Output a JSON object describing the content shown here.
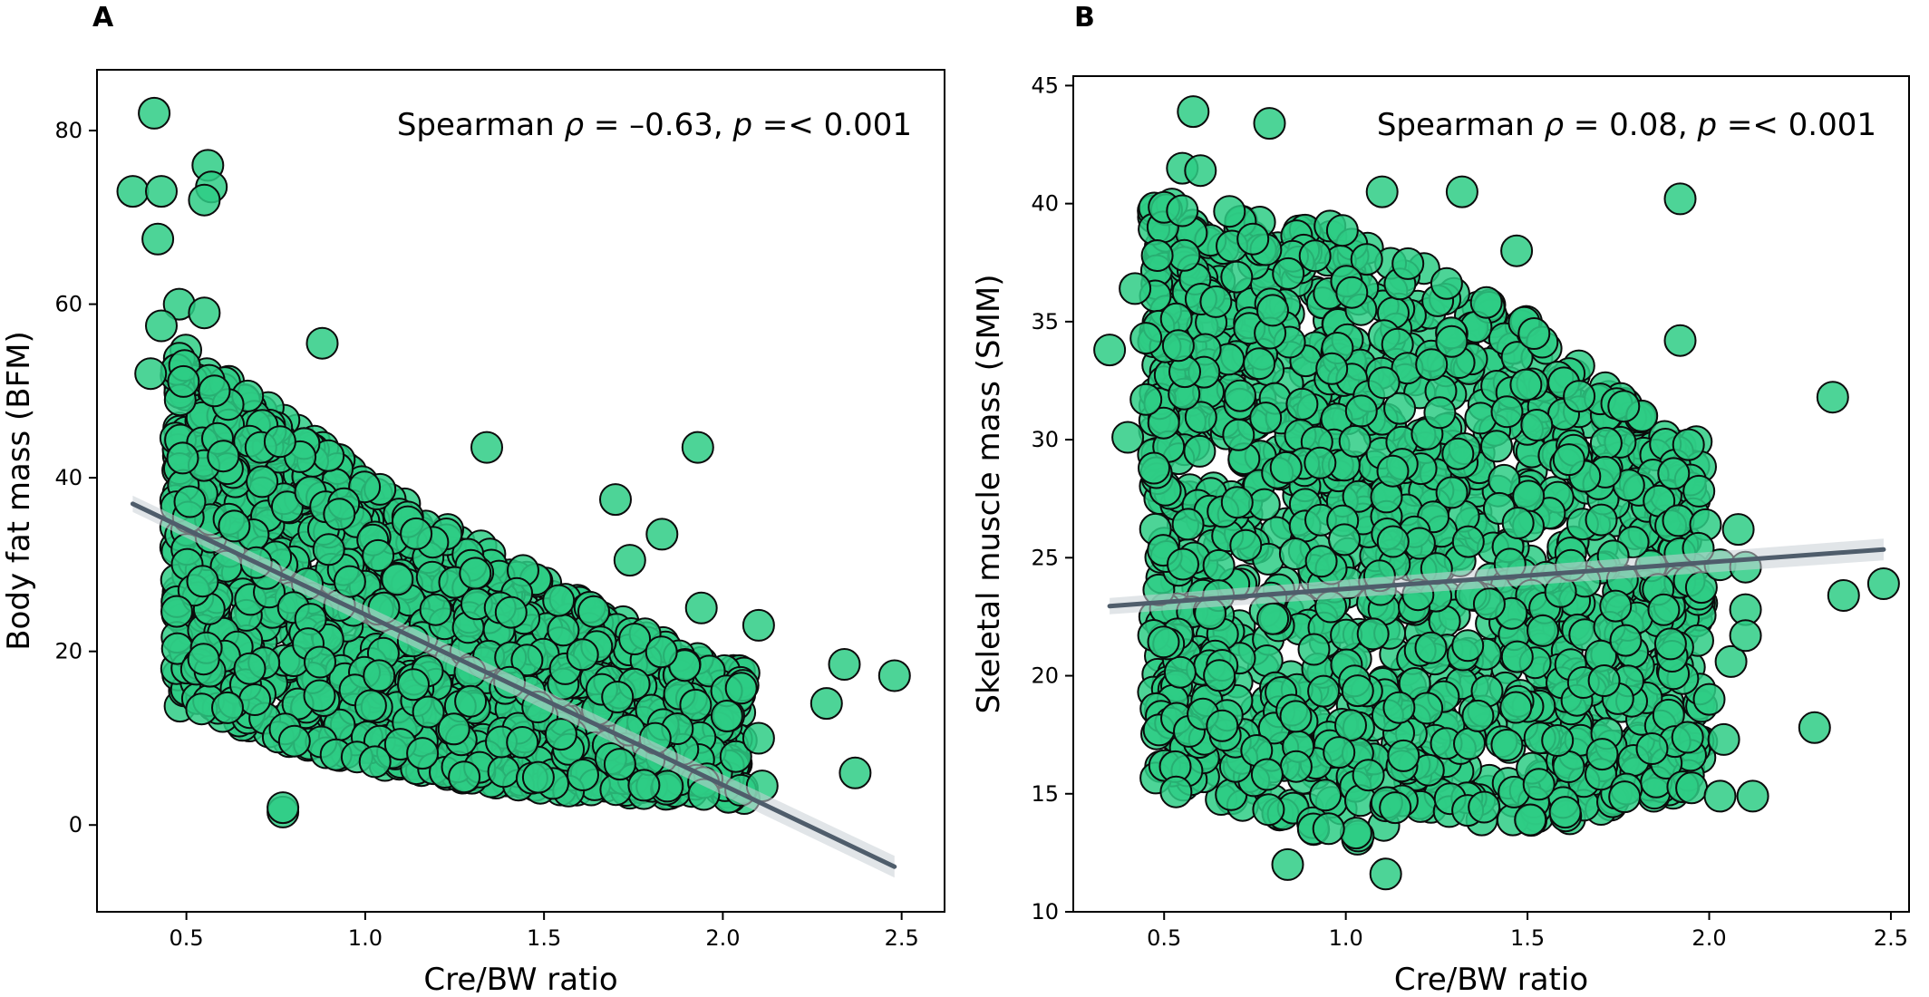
{
  "chart_data": [
    {
      "panel": "A",
      "type": "scatter",
      "annotation_prefix": "Spearman ",
      "rho_symbol": "ρ",
      "rho_text": " = –0.63, ",
      "p_symbol": "p",
      "p_text": " =< 0.001",
      "xlabel": "Cre/BW ratio",
      "ylabel": "Body fat mass (BFM)",
      "xlim": [
        0.25,
        2.62
      ],
      "ylim": [
        -10,
        87
      ],
      "xticks": [
        "0.5",
        "1.0",
        "1.5",
        "2.0",
        "2.5"
      ],
      "yticks": [
        "0",
        "20",
        "40",
        "60",
        "80"
      ],
      "marker_color": "#2ecc85",
      "edge_color": "#0b0b0b",
      "regression_line": {
        "x": [
          0.35,
          2.48
        ],
        "y": [
          37.0,
          -4.8
        ],
        "color": "#4f5d6b"
      },
      "outliers": [
        [
          0.41,
          82
        ],
        [
          0.35,
          73
        ],
        [
          0.43,
          73
        ],
        [
          0.56,
          76
        ],
        [
          0.57,
          73.5
        ],
        [
          0.55,
          72
        ],
        [
          0.42,
          67.5
        ],
        [
          0.48,
          60
        ],
        [
          0.55,
          59
        ],
        [
          0.43,
          57.5
        ],
        [
          0.88,
          55.5
        ],
        [
          0.4,
          52
        ],
        [
          1.34,
          43.5
        ],
        [
          1.93,
          43.5
        ],
        [
          1.7,
          37.5
        ],
        [
          1.74,
          30.5
        ],
        [
          1.83,
          33.5
        ],
        [
          2.1,
          23
        ],
        [
          2.29,
          14
        ],
        [
          2.34,
          18.5
        ],
        [
          2.37,
          6
        ],
        [
          2.48,
          17.2
        ],
        [
          0.77,
          1.5
        ],
        [
          0.77,
          2.0
        ],
        [
          2.05,
          4
        ],
        [
          2.1,
          10
        ],
        [
          2.11,
          4.5
        ],
        [
          1.94,
          25
        ]
      ],
      "cloud": {
        "n": 1500,
        "x_range": [
          0.47,
          2.06
        ],
        "y_top_at": [
          [
            0.5,
            55
          ],
          [
            1.0,
            40
          ],
          [
            1.5,
            28
          ],
          [
            2.0,
            18
          ]
        ],
        "y_bottom_at": [
          [
            0.5,
            13
          ],
          [
            1.0,
            7
          ],
          [
            1.5,
            4
          ],
          [
            2.0,
            3
          ]
        ]
      }
    },
    {
      "panel": "B",
      "type": "scatter",
      "annotation_prefix": "Spearman ",
      "rho_symbol": "ρ",
      "rho_text": " = 0.08, ",
      "p_symbol": "p",
      "p_text": " =< 0.001",
      "xlabel": "Cre/BW ratio",
      "ylabel": "Skeletal muscle mass (SMM)",
      "xlim": [
        0.25,
        2.55
      ],
      "ylim": [
        10,
        45.4
      ],
      "xticks": [
        "0.5",
        "1.0",
        "1.5",
        "2.0",
        "2.5"
      ],
      "yticks": [
        "10",
        "15",
        "20",
        "25",
        "30",
        "35",
        "40",
        "45"
      ],
      "marker_color": "#2ecc85",
      "edge_color": "#0b0b0b",
      "regression_line": {
        "x": [
          0.35,
          2.48
        ],
        "y": [
          22.95,
          25.35
        ],
        "color": "#4f5d6b"
      },
      "outliers": [
        [
          0.58,
          43.9
        ],
        [
          0.79,
          43.4
        ],
        [
          0.55,
          41.5
        ],
        [
          0.6,
          41.4
        ],
        [
          1.1,
          40.5
        ],
        [
          1.32,
          40.5
        ],
        [
          0.55,
          39.7
        ],
        [
          1.92,
          40.2
        ],
        [
          0.35,
          33.8
        ],
        [
          0.42,
          36.4
        ],
        [
          0.45,
          34.3
        ],
        [
          0.45,
          31.7
        ],
        [
          0.4,
          30.1
        ],
        [
          1.47,
          38.0
        ],
        [
          1.92,
          34.2
        ],
        [
          2.34,
          31.8
        ],
        [
          2.37,
          23.4
        ],
        [
          2.48,
          23.9
        ],
        [
          2.29,
          17.8
        ],
        [
          2.12,
          14.9
        ],
        [
          2.03,
          14.9
        ],
        [
          0.84,
          12.0
        ],
        [
          1.11,
          11.6
        ],
        [
          1.99,
          26.4
        ],
        [
          2.03,
          24.7
        ],
        [
          2.08,
          26.2
        ],
        [
          2.1,
          24.6
        ],
        [
          2.0,
          19.0
        ],
        [
          2.04,
          17.3
        ],
        [
          2.06,
          20.6
        ],
        [
          2.1,
          22.8
        ],
        [
          2.1,
          21.7
        ],
        [
          1.97,
          25.4
        ]
      ],
      "cloud": {
        "n": 1500,
        "x_range": [
          0.47,
          1.98
        ],
        "y_top_at": [
          [
            0.6,
            40
          ],
          [
            1.0,
            39
          ],
          [
            1.5,
            35
          ],
          [
            1.9,
            30
          ]
        ],
        "y_bottom_at": [
          [
            0.6,
            15
          ],
          [
            1.0,
            13
          ],
          [
            1.5,
            13.5
          ],
          [
            1.9,
            15
          ]
        ]
      }
    }
  ]
}
